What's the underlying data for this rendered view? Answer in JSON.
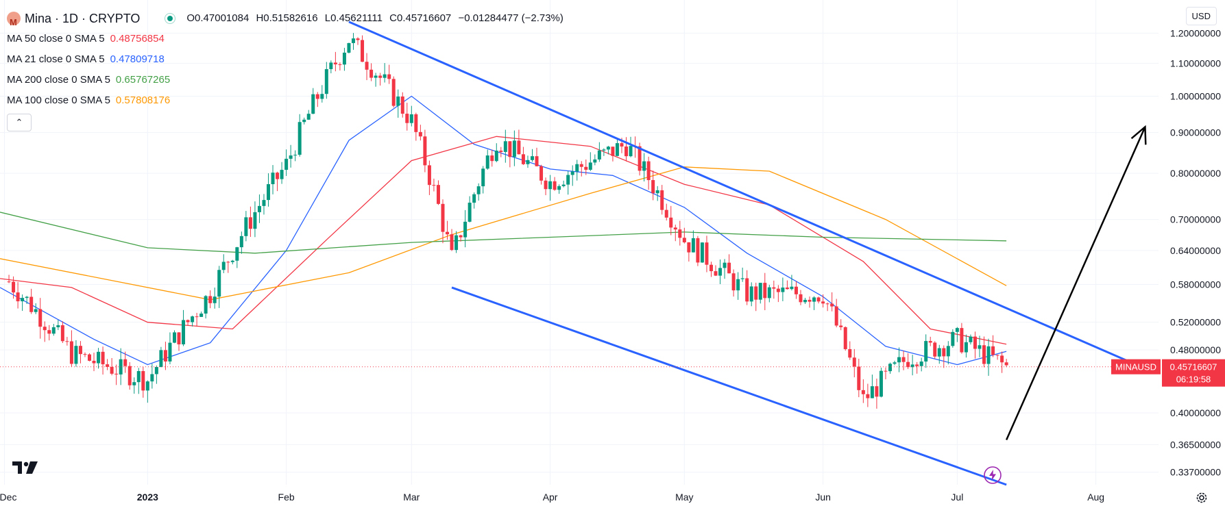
{
  "header": {
    "symbol": "Mina · 1D · CRYPTO",
    "open": "O0.47001084",
    "high": "H0.51582616",
    "low": "L0.45621111",
    "close": "C0.45716607",
    "change": "−0.01284477 (−2.73%)"
  },
  "indicators": [
    {
      "label": "MA 50 close 0 SMA 5",
      "value": "0.48756854",
      "color": "#f23645"
    },
    {
      "label": "MA 21 close 0 SMA 5",
      "value": "0.47809718",
      "color": "#2962ff"
    },
    {
      "label": "MA 200 close 0 SMA 5",
      "value": "0.65767265",
      "color": "#43a047"
    },
    {
      "label": "MA 100 close 0 SMA 5",
      "value": "0.57808176",
      "color": "#ff9800"
    }
  ],
  "currency": "USD",
  "price_tag": {
    "symbol": "MINAUSD",
    "price": "0.45716607",
    "countdown": "06:19:58"
  },
  "colors": {
    "up": "#089981",
    "down": "#f23645",
    "channel": "#2962ff",
    "arrow": "#000000",
    "grid": "#f0f3fa"
  },
  "chart_data": {
    "type": "candlestick",
    "title": "Mina · 1D · CRYPTO",
    "y_scale": "log",
    "y_ticks": [
      "1.20000000",
      "1.10000000",
      "1.00000000",
      "0.90000000",
      "0.80000000",
      "0.70000000",
      "0.64000000",
      "0.58000000",
      "0.52000000",
      "0.48000000",
      "0.40000000",
      "0.36500000",
      "0.33700000"
    ],
    "x_ticks": [
      "Dec",
      "2023",
      "Feb",
      "Mar",
      "Apr",
      "May",
      "Jun",
      "Jul",
      "Aug"
    ],
    "x_range": [
      "2022-11-29",
      "2023-08-15"
    ],
    "y_range": [
      0.325,
      1.3
    ],
    "last_price": 0.45716607,
    "candles_weekly_summary": [
      {
        "date": "2022-12-01",
        "close": 0.585
      },
      {
        "date": "2022-12-15",
        "close": 0.475
      },
      {
        "date": "2023-01-01",
        "close": 0.44
      },
      {
        "date": "2023-01-15",
        "close": 0.565
      },
      {
        "date": "2023-02-01",
        "close": 0.82
      },
      {
        "date": "2023-02-15",
        "close": 1.18
      },
      {
        "date": "2023-03-01",
        "close": 0.93
      },
      {
        "date": "2023-03-10",
        "close": 0.625
      },
      {
        "date": "2023-03-20",
        "close": 0.885
      },
      {
        "date": "2023-04-01",
        "close": 0.78
      },
      {
        "date": "2023-04-18",
        "close": 0.87
      },
      {
        "date": "2023-05-01",
        "close": 0.66
      },
      {
        "date": "2023-05-15",
        "close": 0.565
      },
      {
        "date": "2023-06-01",
        "close": 0.565
      },
      {
        "date": "2023-06-10",
        "close": 0.415
      },
      {
        "date": "2023-06-20",
        "close": 0.47
      },
      {
        "date": "2023-07-01",
        "close": 0.495
      },
      {
        "date": "2023-07-12",
        "close": 0.457
      }
    ],
    "moving_averages": [
      {
        "name": "MA 21",
        "color": "#2962ff",
        "points": [
          [
            "2022-11-29",
            0.575
          ],
          [
            "2022-12-20",
            0.495
          ],
          [
            "2023-01-01",
            0.46
          ],
          [
            "2023-01-15",
            0.49
          ],
          [
            "2023-02-01",
            0.64
          ],
          [
            "2023-02-15",
            0.88
          ],
          [
            "2023-03-01",
            1.0
          ],
          [
            "2023-03-15",
            0.87
          ],
          [
            "2023-04-01",
            0.81
          ],
          [
            "2023-04-15",
            0.795
          ],
          [
            "2023-05-01",
            0.725
          ],
          [
            "2023-05-15",
            0.635
          ],
          [
            "2023-06-01",
            0.56
          ],
          [
            "2023-06-15",
            0.485
          ],
          [
            "2023-07-01",
            0.46
          ],
          [
            "2023-07-12",
            0.478
          ]
        ]
      },
      {
        "name": "MA 50",
        "color": "#f23645",
        "points": [
          [
            "2022-11-29",
            0.59
          ],
          [
            "2022-12-15",
            0.575
          ],
          [
            "2023-01-01",
            0.52
          ],
          [
            "2023-01-20",
            0.51
          ],
          [
            "2023-02-10",
            0.66
          ],
          [
            "2023-03-01",
            0.83
          ],
          [
            "2023-03-20",
            0.89
          ],
          [
            "2023-04-10",
            0.865
          ],
          [
            "2023-05-01",
            0.775
          ],
          [
            "2023-05-20",
            0.73
          ],
          [
            "2023-06-10",
            0.62
          ],
          [
            "2023-06-25",
            0.51
          ],
          [
            "2023-07-12",
            0.488
          ]
        ]
      },
      {
        "name": "MA 100",
        "color": "#ff9800",
        "points": [
          [
            "2022-11-29",
            0.625
          ],
          [
            "2023-01-15",
            0.555
          ],
          [
            "2023-02-15",
            0.6
          ],
          [
            "2023-03-10",
            0.67
          ],
          [
            "2023-04-10",
            0.755
          ],
          [
            "2023-05-01",
            0.815
          ],
          [
            "2023-05-20",
            0.805
          ],
          [
            "2023-06-15",
            0.7
          ],
          [
            "2023-07-12",
            0.578
          ]
        ]
      },
      {
        "name": "MA 200",
        "color": "#43a047",
        "points": [
          [
            "2022-11-29",
            0.715
          ],
          [
            "2023-01-01",
            0.645
          ],
          [
            "2023-01-25",
            0.635
          ],
          [
            "2023-03-01",
            0.655
          ],
          [
            "2023-04-01",
            0.665
          ],
          [
            "2023-05-01",
            0.675
          ],
          [
            "2023-06-01",
            0.665
          ],
          [
            "2023-07-12",
            0.658
          ]
        ]
      }
    ],
    "annotations": [
      {
        "type": "trendline",
        "from": [
          "2023-02-15",
          1.24
        ],
        "to": [
          "2023-08-10",
          0.46
        ]
      },
      {
        "type": "trendline",
        "from": [
          "2023-03-10",
          0.575
        ],
        "to": [
          "2023-07-12",
          0.325
        ]
      },
      {
        "type": "arrow",
        "from": [
          "2023-07-12",
          0.37
        ],
        "to": [
          "2023-08-12",
          0.915
        ]
      }
    ]
  }
}
